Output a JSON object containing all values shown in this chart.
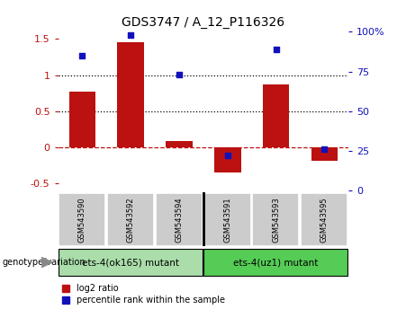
{
  "title": "GDS3747 / A_12_P116326",
  "samples": [
    "GSM543590",
    "GSM543592",
    "GSM543594",
    "GSM543591",
    "GSM543593",
    "GSM543595"
  ],
  "log2_ratio": [
    0.77,
    1.46,
    0.09,
    -0.35,
    0.87,
    -0.18
  ],
  "percentile_rank": [
    85,
    98,
    73,
    22,
    89,
    26
  ],
  "bar_color": "#bb1111",
  "dot_color": "#1111bb",
  "group1_label": "ets-4(ok165) mutant",
  "group2_label": "ets-4(uz1) mutant",
  "group1_color": "#aaddaa",
  "group2_color": "#55cc55",
  "ylim_left": [
    -0.6,
    1.6
  ],
  "ylim_right": [
    0,
    100
  ],
  "bar_width": 0.55,
  "left_yticks": [
    -0.5,
    0.0,
    0.5,
    1.0,
    1.5
  ],
  "left_yticklabels": [
    "-0.5",
    "0",
    "0.5",
    "1",
    "1.5"
  ],
  "right_yticks": [
    0,
    25,
    50,
    75,
    100
  ],
  "right_yticklabels": [
    "0",
    "25",
    "50",
    "75",
    "100%"
  ],
  "hline_dotted": [
    0.5,
    1.0
  ],
  "hline_dashed": 0.0
}
